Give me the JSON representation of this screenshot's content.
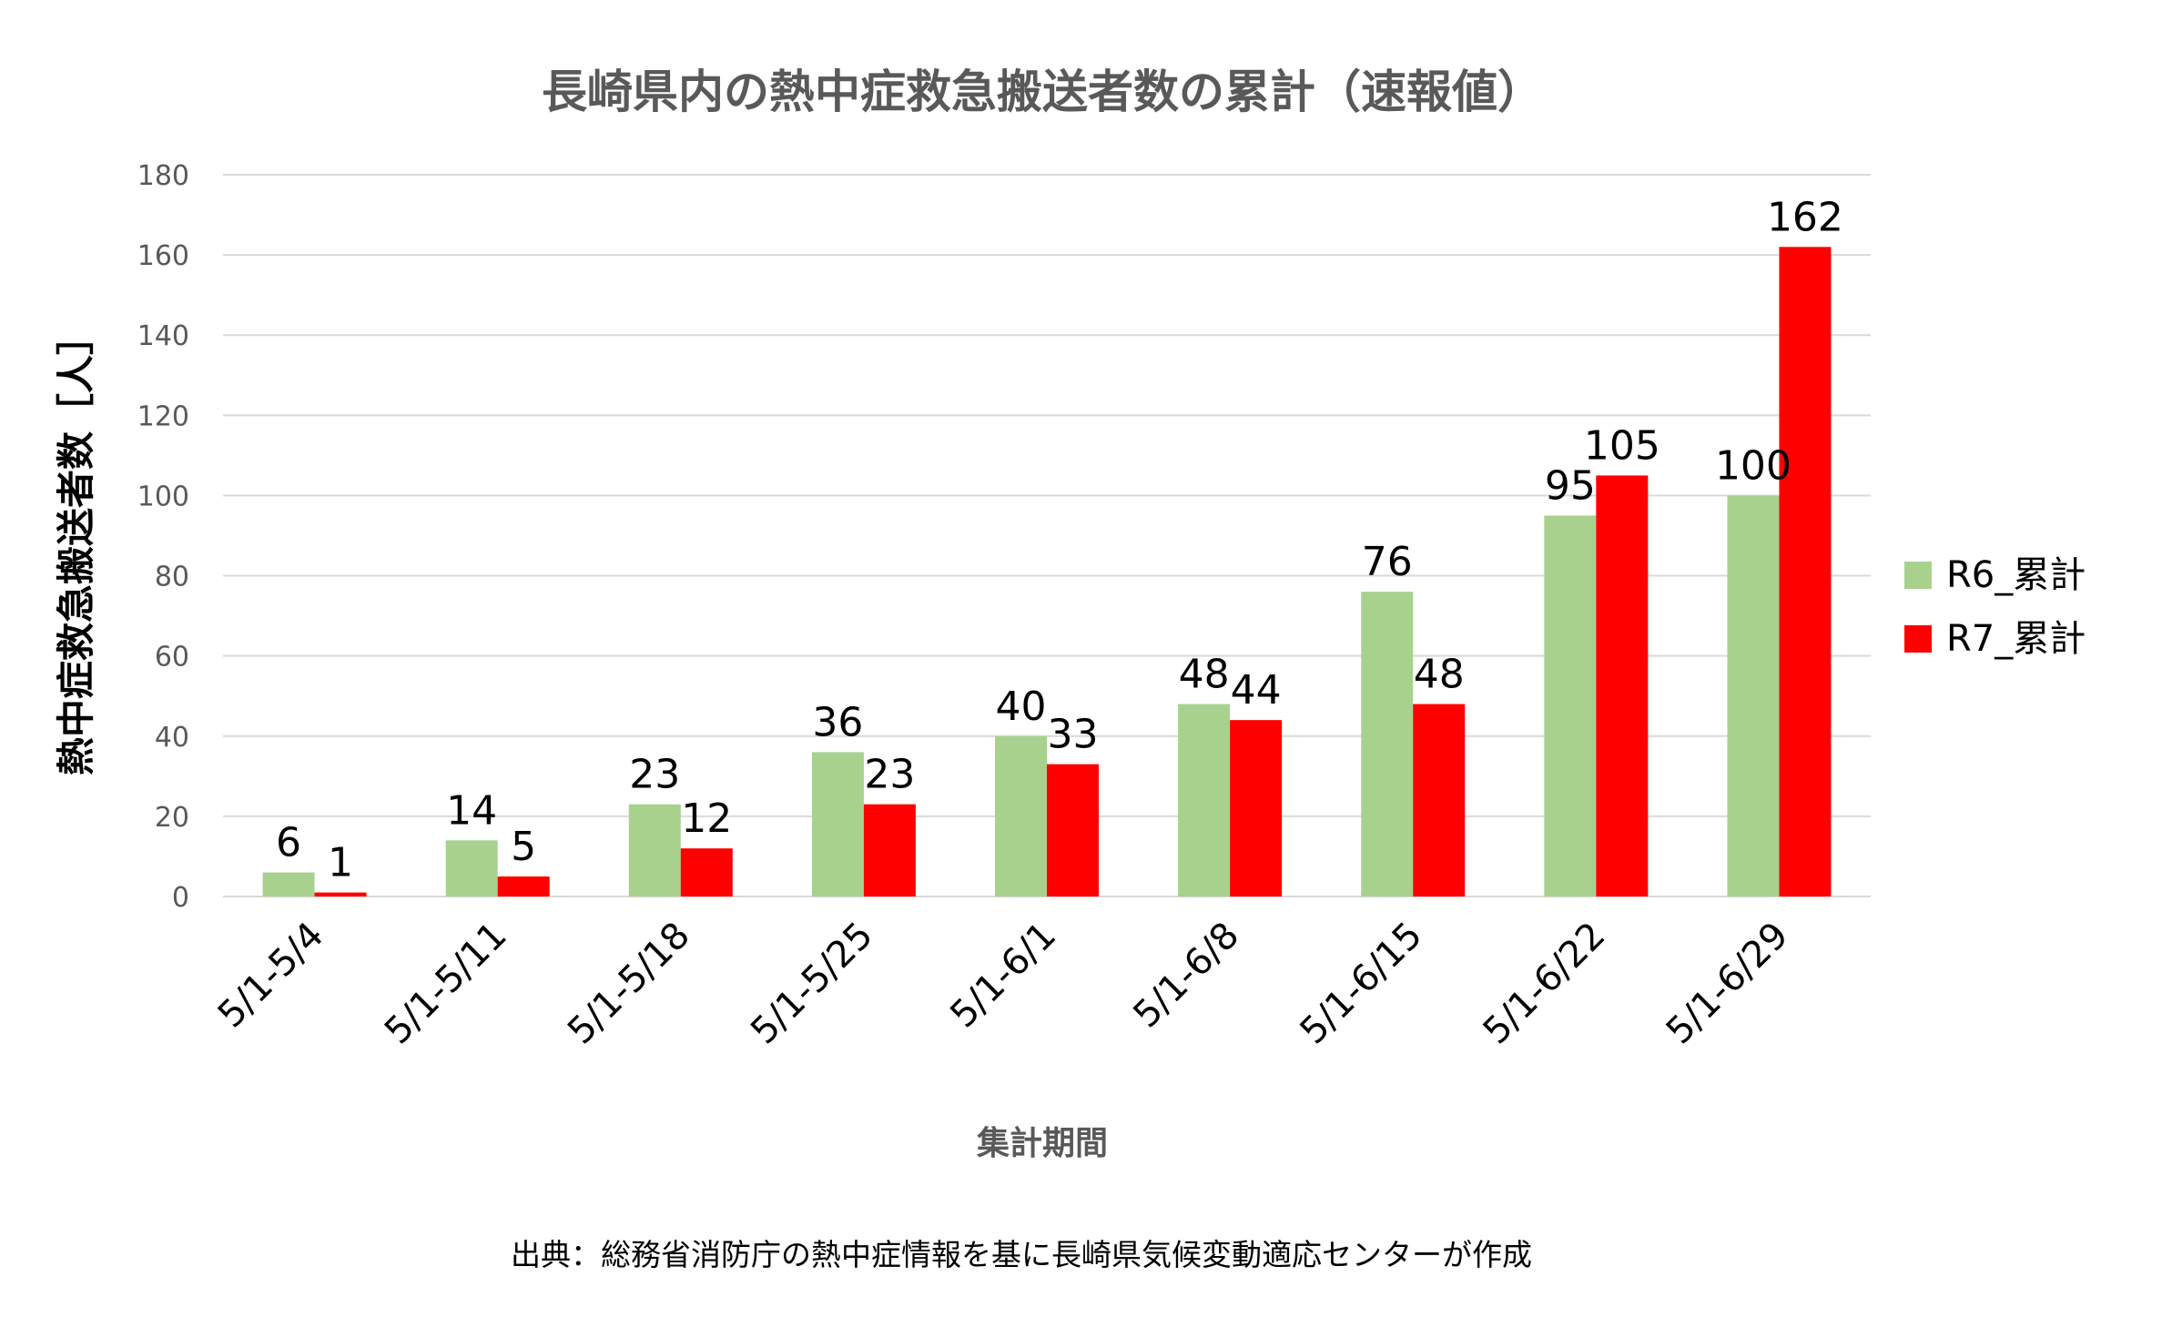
{
  "chart_data": {
    "type": "bar",
    "title": "長崎県内の熱中症救急搬送者数の累計（速報値）",
    "xlabel": "集計期間",
    "ylabel": "熱中症救急搬送者数［人］",
    "categories": [
      "5/1-5/4",
      "5/1-5/11",
      "5/1-5/18",
      "5/1-5/25",
      "5/1-6/1",
      "5/1-6/8",
      "5/1-6/15",
      "5/1-6/22",
      "5/1-6/29"
    ],
    "series": [
      {
        "name": "R6_累計",
        "color": "#a9d18e",
        "values": [
          6,
          14,
          23,
          36,
          40,
          48,
          76,
          95,
          100
        ]
      },
      {
        "name": "R7_累計",
        "color": "#ff0000",
        "values": [
          1,
          5,
          12,
          23,
          33,
          44,
          48,
          105,
          162
        ]
      }
    ],
    "ylim": [
      0,
      180
    ],
    "yticks": [
      0,
      20,
      40,
      60,
      80,
      100,
      120,
      140,
      160,
      180
    ],
    "grid": true,
    "legend_position": "right",
    "data_labels": true
  },
  "source_note": "出典：総務省消防庁の熱中症情報を基に長崎県気候変動適応センターが作成"
}
